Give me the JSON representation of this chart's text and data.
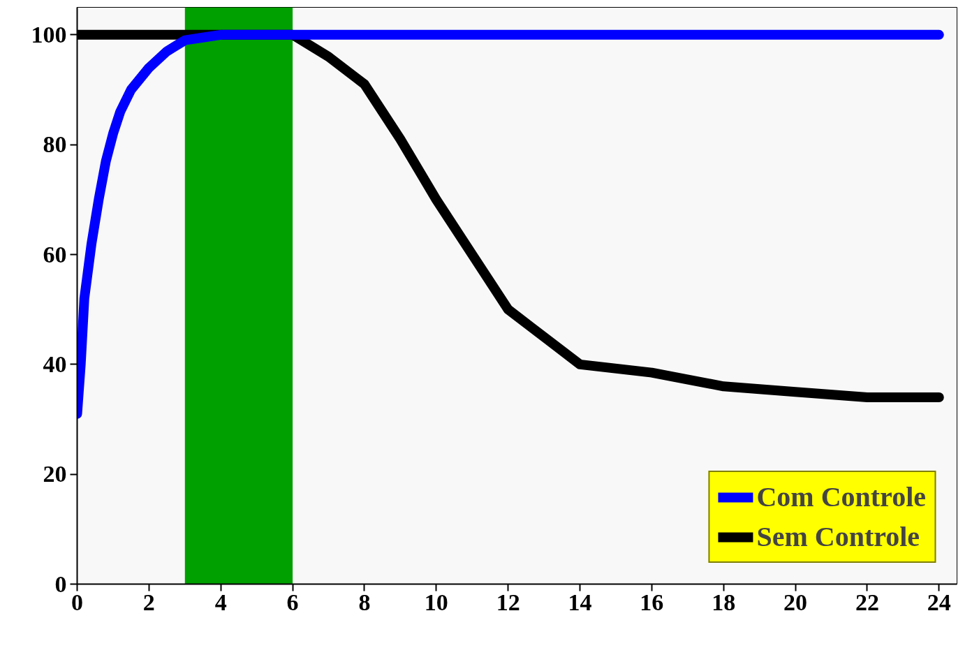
{
  "chart_data": {
    "type": "line",
    "series": [
      {
        "name": "Com Controle",
        "color": "#0000ff",
        "x": [
          0,
          0.1,
          0.2,
          0.4,
          0.6,
          0.8,
          1,
          1.2,
          1.5,
          2,
          2.5,
          3,
          3.5,
          4,
          5,
          6,
          8,
          12,
          16,
          20,
          24
        ],
        "values": [
          31,
          40,
          52,
          62,
          70,
          77,
          82,
          86,
          90,
          94,
          97,
          99,
          99.5,
          100,
          100,
          100,
          100,
          100,
          100,
          100,
          100
        ]
      },
      {
        "name": "Sem Controle",
        "color": "#000000",
        "x": [
          0,
          2,
          4,
          6,
          7,
          8,
          9,
          10,
          11,
          12,
          13,
          14,
          16,
          18,
          20,
          22,
          24
        ],
        "values": [
          100,
          100,
          100,
          100,
          96,
          91,
          81,
          70,
          60,
          50,
          45,
          40,
          38.5,
          36,
          35,
          34,
          34
        ]
      }
    ],
    "xlim": [
      0,
      24.5
    ],
    "ylim": [
      0,
      105
    ],
    "xticks": [
      0,
      2,
      4,
      6,
      8,
      10,
      12,
      14,
      16,
      18,
      20,
      22,
      24
    ],
    "yticks": [
      0,
      20,
      40,
      60,
      80,
      100
    ],
    "bands": [
      {
        "axis": "x",
        "from": 3,
        "to": 6,
        "color": "#00a000"
      }
    ],
    "legend": "bottom right",
    "grid": false,
    "line_style": "solid",
    "marker": "none"
  }
}
